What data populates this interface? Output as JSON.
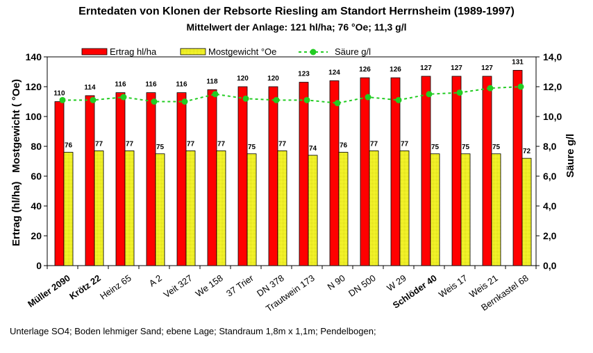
{
  "title": "Erntedaten von Klonen der Rebsorte Riesling am Standort Herrnsheim (1989-1997)",
  "subtitle": "Mittelwert der Anlage: 121 hl/ha; 76 °Oe; 11,3 g/l",
  "footnote": "Unterlage SO4; Boden lehmiger Sand; ebene Lage; Standraum 1,8m x 1,1m; Pendelbogen;",
  "colors": {
    "ertrag": "#ff0000",
    "mostgewicht": "#ffff33",
    "saeure": "#22cc22"
  },
  "chart_data": {
    "type": "bar",
    "ylabel_left": "Ertrag (hl/ha)   Mostgewicht ( °Oe)",
    "ylabel_right": "Säure g/l",
    "ylim_left": [
      0,
      140
    ],
    "ylim_right": [
      0,
      14
    ],
    "yticks_left": [
      "0",
      "20",
      "40",
      "60",
      "80",
      "100",
      "120",
      "140"
    ],
    "yticks_right": [
      "0,0",
      "2,0",
      "4,0",
      "6,0",
      "8,0",
      "10,0",
      "12,0",
      "14,0"
    ],
    "legend_position": "top",
    "categories": [
      "Müller 2090",
      "Krötz 22",
      "Heinz 65",
      "A 2",
      "Veit 327",
      "We 158",
      "37 Trier",
      "DN 378",
      "Trautwein 173",
      "N 90",
      "DN 500",
      "W 29",
      "Schlöder 40",
      "Weis 17",
      "Weis 21",
      "Bernkastel 68"
    ],
    "bold_categories": [
      "Müller 2090",
      "Krötz 22",
      "Schlöder 40"
    ],
    "series": [
      {
        "name": "Ertrag hl/ha",
        "type": "bar",
        "axis": "left",
        "values": [
          110,
          114,
          116,
          116,
          116,
          118,
          120,
          120,
          123,
          124,
          126,
          126,
          127,
          127,
          127,
          131
        ]
      },
      {
        "name": "Mostgewicht °Oe",
        "type": "bar",
        "axis": "left",
        "values": [
          76,
          77,
          77,
          75,
          77,
          77,
          75,
          77,
          74,
          76,
          77,
          77,
          75,
          75,
          75,
          72
        ]
      },
      {
        "name": "Säure g/l",
        "type": "line",
        "axis": "right",
        "values": [
          11.1,
          11.1,
          11.3,
          11.0,
          11.0,
          11.5,
          11.2,
          11.1,
          11.1,
          10.9,
          11.3,
          11.1,
          11.5,
          11.6,
          11.9,
          12.0
        ]
      }
    ]
  }
}
